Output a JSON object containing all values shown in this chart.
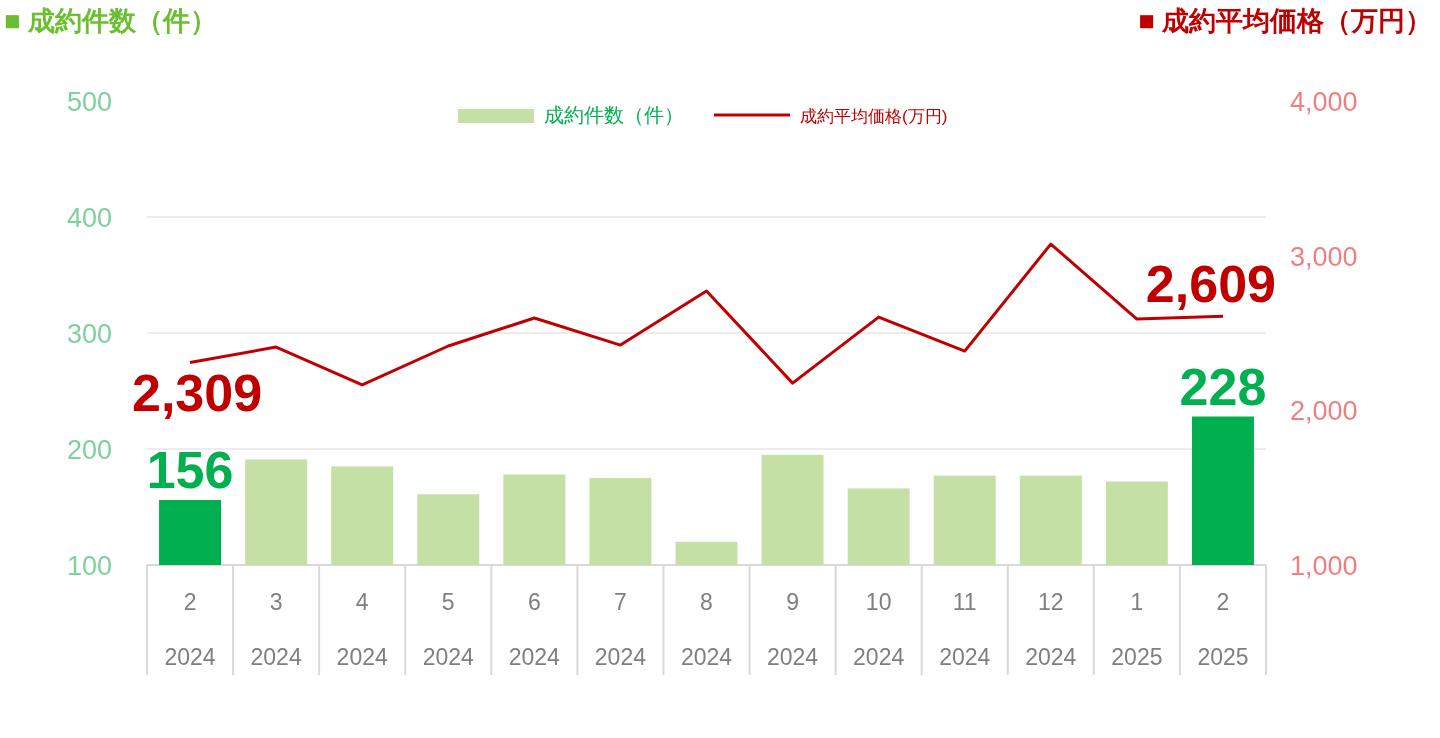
{
  "chart_data": {
    "type": "bar",
    "categories": [
      "2\n2024",
      "3\n2024",
      "4\n2024",
      "5\n2024",
      "6\n2024",
      "7\n2024",
      "8\n2024",
      "9\n2024",
      "10\n2024",
      "11\n2024",
      "12\n2024",
      "1\n2025",
      "2\n2025"
    ],
    "ylabel": "■ 成約件数（件）",
    "y2label": "■ 成約平均価格（万円）",
    "ylim": [
      100,
      500
    ],
    "yticks": [
      100,
      200,
      300,
      400,
      500
    ],
    "y2lim": [
      1000,
      4000
    ],
    "y2ticks": [
      {
        "value": 1000,
        "label": "1,000"
      },
      {
        "value": 2000,
        "label": "2,000"
      },
      {
        "value": 3000,
        "label": "3,000"
      },
      {
        "value": 4000,
        "label": "4,000"
      }
    ],
    "grid": "y",
    "legend": "top",
    "series": [
      {
        "name": "成約件数（件）",
        "color": "#c5e0a5",
        "colors": [
          "#00b050",
          "#c5e0a5",
          "#c5e0a5",
          "#c5e0a5",
          "#c5e0a5",
          "#c5e0a5",
          "#c5e0a5",
          "#c5e0a5",
          "#c5e0a5",
          "#c5e0a5",
          "#c5e0a5",
          "#c5e0a5",
          "#00b050"
        ],
        "values": [
          156,
          191,
          185,
          161,
          178,
          175,
          120,
          195,
          166,
          177,
          177,
          172,
          228
        ],
        "value_labels": [
          "156",
          null,
          null,
          null,
          null,
          null,
          null,
          null,
          null,
          null,
          null,
          null,
          "228"
        ]
      },
      {
        "name": "成約平均価格(万円)",
        "type": "line",
        "axis": "y2",
        "color": "#c00000",
        "values": [
          2309,
          2409,
          2164,
          2416,
          2597,
          2422,
          2771,
          2176,
          2603,
          2383,
          3075,
          2590,
          2609
        ],
        "value_labels": [
          "2,309",
          null,
          null,
          null,
          null,
          null,
          null,
          null,
          null,
          null,
          null,
          null,
          "2,609"
        ]
      }
    ]
  }
}
